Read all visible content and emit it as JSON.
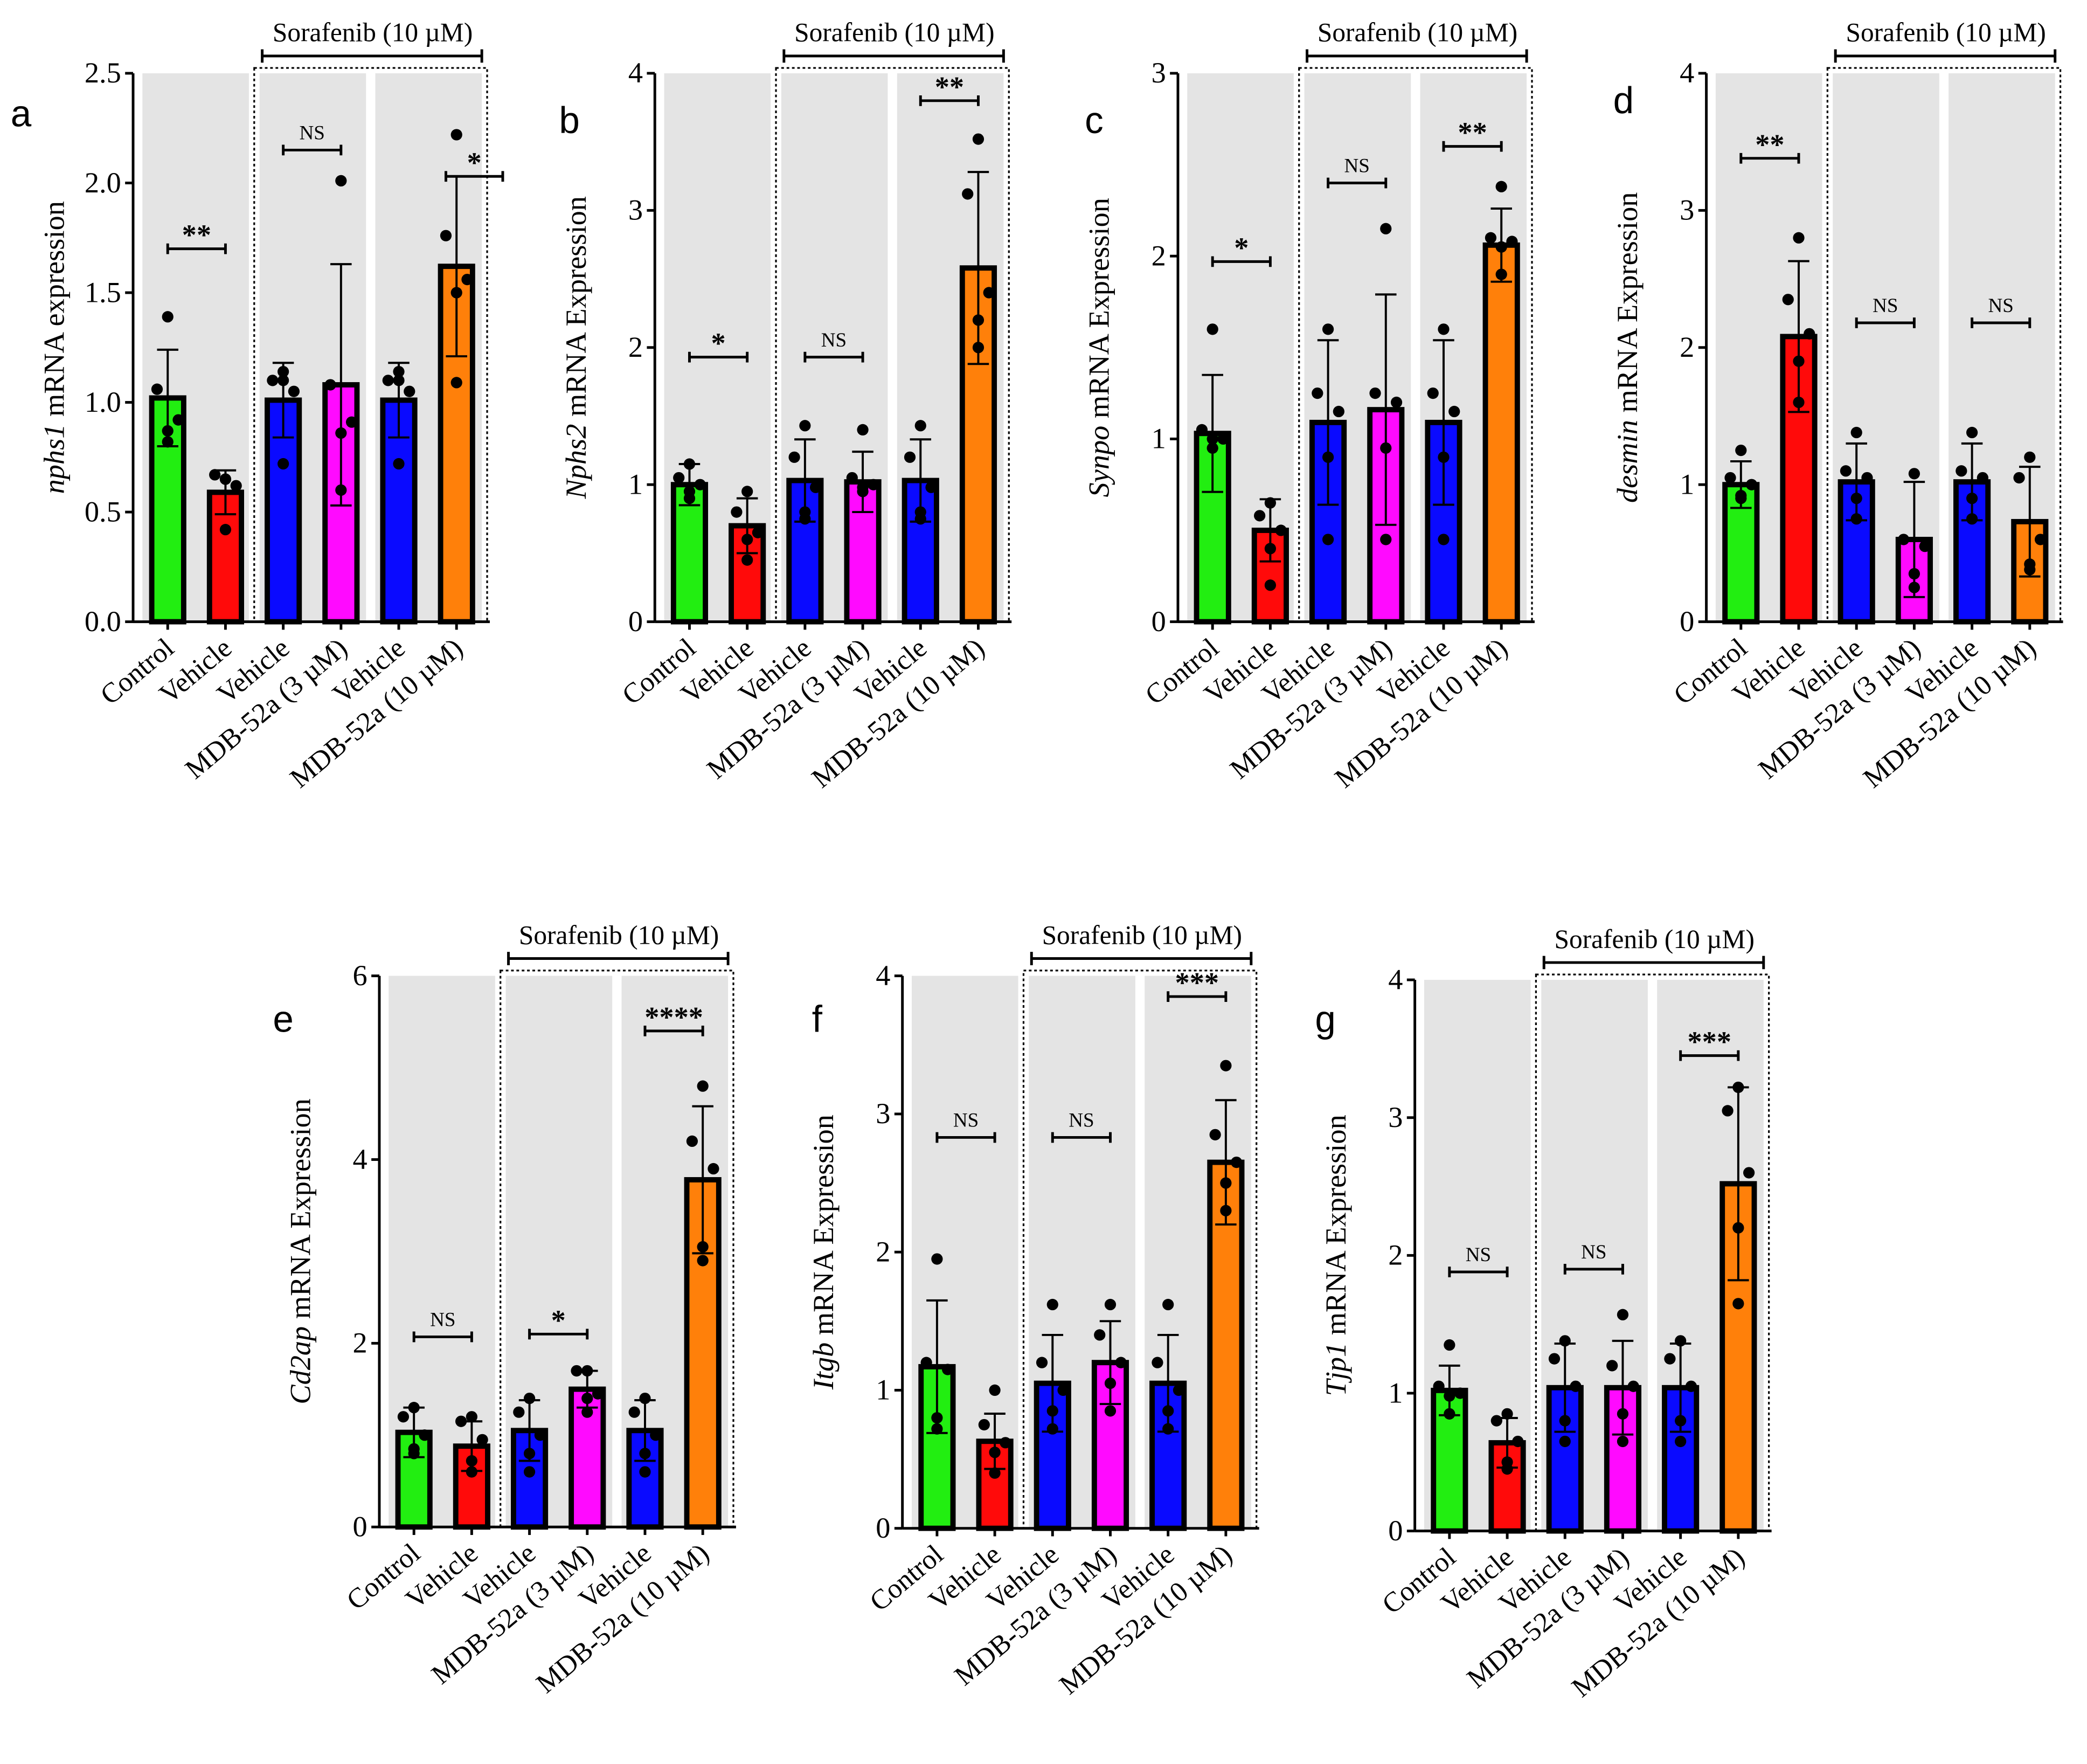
{
  "figure": {
    "bracket_label": "Sorafenib (10 µM)",
    "categories": [
      "Control",
      "Vehicle",
      "Vehicle",
      "MDB-52a (3 µM)",
      "Vehicle",
      "MDB-52a (10 µM)"
    ],
    "bar_colors": [
      "#22ee11",
      "#ff0a0a",
      "#0a0aff",
      "#ff0aff",
      "#0a0aff",
      "#ff800a"
    ],
    "band_color": "#e4e4e4"
  },
  "chart_data": [
    {
      "type": "bar",
      "panel": "a",
      "ylabel_gene": "nphs1",
      "ylabel_rest": " mRNA expression",
      "ylim": [
        0,
        2.5
      ],
      "ticks": [
        "0.0",
        "0.5",
        "1.0",
        "1.5",
        "2.0",
        "2.5"
      ],
      "tick_values": [
        0,
        0.5,
        1,
        1.5,
        2,
        2.5
      ],
      "means": [
        1.02,
        0.59,
        1.01,
        1.08,
        1.01,
        1.62
      ],
      "errors": [
        0.22,
        0.1,
        0.17,
        0.55,
        0.17,
        0.41
      ],
      "points": [
        [
          1.39,
          1.06,
          0.92,
          0.87,
          0.82
        ],
        [
          0.65,
          0.67,
          0.62,
          0.65,
          0.42
        ],
        [
          1.14,
          1.1,
          1.05,
          1.1,
          0.72
        ],
        [
          2.01,
          1.08,
          0.91,
          0.86,
          0.6
        ],
        [
          1.14,
          1.1,
          1.05,
          1.1,
          0.72
        ],
        [
          2.22,
          1.76,
          1.56,
          1.5,
          1.09
        ]
      ],
      "comparisons": [
        {
          "from": 0,
          "to": 1,
          "y": 1.7,
          "label": "**"
        },
        {
          "from": 2,
          "to": 3,
          "y": 2.15,
          "label": "NS"
        },
        {
          "from": 5,
          "to": 5.8,
          "y": 2.03,
          "label": "*"
        }
      ]
    },
    {
      "type": "bar",
      "panel": "b",
      "ylabel_gene": "Nphs2",
      "ylabel_rest": " mRNA Expression",
      "ylim": [
        0,
        4
      ],
      "ticks": [
        "0",
        "1",
        "2",
        "3",
        "4"
      ],
      "tick_values": [
        0,
        1,
        2,
        3,
        4
      ],
      "means": [
        1.0,
        0.7,
        1.03,
        1.02,
        1.03,
        2.58
      ],
      "errors": [
        0.15,
        0.2,
        0.3,
        0.22,
        0.3,
        0.7
      ],
      "points": [
        [
          1.15,
          1.05,
          1.0,
          0.95,
          0.9
        ],
        [
          0.95,
          0.8,
          0.65,
          0.6,
          0.45
        ],
        [
          1.43,
          1.2,
          0.98,
          0.8,
          0.75
        ],
        [
          1.4,
          1.05,
          1.0,
          0.98,
          0.95
        ],
        [
          1.43,
          1.2,
          0.98,
          0.8,
          0.75
        ],
        [
          3.52,
          3.12,
          2.4,
          2.2,
          2.0
        ]
      ],
      "comparisons": [
        {
          "from": 0,
          "to": 1,
          "y": 1.93,
          "label": "*"
        },
        {
          "from": 2,
          "to": 3,
          "y": 1.93,
          "label": "NS"
        },
        {
          "from": 4,
          "to": 5,
          "y": 3.8,
          "label": "**"
        }
      ]
    },
    {
      "type": "bar",
      "panel": "c",
      "ylabel_gene": "Synpo",
      "ylabel_rest": "  mRNA Expression",
      "ylim": [
        0,
        3
      ],
      "ticks": [
        "0",
        "1",
        "2",
        "3"
      ],
      "tick_values": [
        0,
        1,
        2,
        3
      ],
      "means": [
        1.03,
        0.5,
        1.09,
        1.16,
        1.09,
        2.06
      ],
      "errors": [
        0.32,
        0.17,
        0.45,
        0.63,
        0.45,
        0.2
      ],
      "points": [
        [
          1.6,
          1.05,
          1.0,
          0.95,
          1.0
        ],
        [
          0.65,
          0.58,
          0.5,
          0.4,
          0.2
        ],
        [
          1.6,
          1.25,
          1.15,
          0.9,
          0.45
        ],
        [
          2.15,
          1.25,
          1.2,
          0.95,
          0.45
        ],
        [
          1.6,
          1.25,
          1.15,
          0.9,
          0.45
        ],
        [
          2.38,
          2.1,
          2.08,
          2.05,
          1.9
        ]
      ],
      "comparisons": [
        {
          "from": 0,
          "to": 1,
          "y": 1.97,
          "label": "*"
        },
        {
          "from": 2,
          "to": 3,
          "y": 2.4,
          "label": "NS"
        },
        {
          "from": 4,
          "to": 5,
          "y": 2.6,
          "label": "**"
        }
      ]
    },
    {
      "type": "bar",
      "panel": "d",
      "ylabel_gene": "desmin",
      "ylabel_rest": " mRNA Expression",
      "ylim": [
        0,
        4
      ],
      "ticks": [
        "0",
        "1",
        "2",
        "3",
        "4"
      ],
      "tick_values": [
        0,
        1,
        2,
        3,
        4
      ],
      "means": [
        1.0,
        2.08,
        1.02,
        0.6,
        1.02,
        0.73
      ],
      "errors": [
        0.17,
        0.55,
        0.28,
        0.42,
        0.28,
        0.4
      ],
      "points": [
        [
          1.25,
          1.05,
          1.0,
          0.92,
          0.9
        ],
        [
          2.8,
          2.35,
          2.1,
          1.9,
          1.6
        ],
        [
          1.38,
          1.1,
          1.05,
          0.9,
          0.75
        ],
        [
          1.08,
          0.6,
          0.55,
          0.35,
          0.25
        ],
        [
          1.38,
          1.1,
          1.05,
          0.9,
          0.75
        ],
        [
          1.2,
          1.05,
          0.6,
          0.42,
          0.38
        ]
      ],
      "comparisons": [
        {
          "from": 0,
          "to": 1,
          "y": 3.38,
          "label": "**"
        },
        {
          "from": 2,
          "to": 3,
          "y": 2.18,
          "label": "NS"
        },
        {
          "from": 4,
          "to": 5,
          "y": 2.18,
          "label": "NS"
        }
      ]
    },
    {
      "type": "bar",
      "panel": "e",
      "ylabel_gene": "Cd2ap",
      "ylabel_rest": " mRNA Expression",
      "ylim": [
        0,
        6
      ],
      "ticks": [
        "0",
        "2",
        "4",
        "6"
      ],
      "tick_values": [
        0,
        2,
        4,
        6
      ],
      "means": [
        1.03,
        0.88,
        1.05,
        1.5,
        1.05,
        3.78
      ],
      "errors": [
        0.27,
        0.27,
        0.33,
        0.2,
        0.33,
        0.8
      ],
      "points": [
        [
          1.3,
          1.2,
          1.0,
          0.85,
          0.8
        ],
        [
          1.2,
          1.15,
          0.95,
          0.72,
          0.6
        ],
        [
          1.4,
          1.25,
          1.0,
          0.8,
          0.6
        ],
        [
          1.7,
          1.7,
          1.45,
          1.4,
          1.25
        ],
        [
          1.4,
          1.25,
          1.0,
          0.8,
          0.6
        ],
        [
          4.8,
          4.2,
          3.9,
          3.05,
          2.9
        ]
      ],
      "comparisons": [
        {
          "from": 0,
          "to": 1,
          "y": 2.07,
          "label": "NS"
        },
        {
          "from": 2,
          "to": 3,
          "y": 2.1,
          "label": "*"
        },
        {
          "from": 4,
          "to": 5,
          "y": 5.4,
          "label": "****"
        }
      ]
    },
    {
      "type": "bar",
      "panel": "f",
      "ylabel_gene": "Itgb",
      "ylabel_rest": " mRNA Expression",
      "ylim": [
        0,
        4
      ],
      "ticks": [
        "0",
        "1",
        "2",
        "3",
        "4"
      ],
      "tick_values": [
        0,
        1,
        2,
        3,
        4
      ],
      "means": [
        1.17,
        0.63,
        1.05,
        1.2,
        1.05,
        2.65
      ],
      "errors": [
        0.48,
        0.2,
        0.35,
        0.3,
        0.35,
        0.45
      ],
      "points": [
        [
          1.95,
          1.2,
          1.15,
          0.8,
          0.72
        ],
        [
          1.0,
          0.75,
          0.62,
          0.55,
          0.4
        ],
        [
          1.62,
          1.2,
          1.0,
          0.85,
          0.72
        ],
        [
          1.62,
          1.4,
          1.2,
          1.05,
          0.85
        ],
        [
          1.62,
          1.2,
          1.0,
          0.85,
          0.72
        ],
        [
          3.35,
          2.85,
          2.65,
          2.5,
          2.3
        ]
      ],
      "comparisons": [
        {
          "from": 0,
          "to": 1,
          "y": 2.83,
          "label": "NS"
        },
        {
          "from": 2,
          "to": 3,
          "y": 2.83,
          "label": "NS"
        },
        {
          "from": 4,
          "to": 5,
          "y": 3.85,
          "label": "***"
        }
      ]
    },
    {
      "type": "bar",
      "panel": "g",
      "ylabel_gene": "Tjp1",
      "ylabel_rest": " mRNA Expression",
      "ylim": [
        0,
        4
      ],
      "ticks": [
        "0",
        "1",
        "2",
        "3",
        "4"
      ],
      "tick_values": [
        0,
        1,
        2,
        3,
        4
      ],
      "means": [
        1.02,
        0.64,
        1.04,
        1.04,
        1.04,
        2.52
      ],
      "errors": [
        0.18,
        0.18,
        0.32,
        0.34,
        0.32,
        0.7
      ],
      "points": [
        [
          1.35,
          1.05,
          1.0,
          0.98,
          0.85
        ],
        [
          0.85,
          0.8,
          0.65,
          0.5,
          0.45
        ],
        [
          1.38,
          1.25,
          1.05,
          0.8,
          0.65
        ],
        [
          1.57,
          1.2,
          1.05,
          0.85,
          0.65
        ],
        [
          1.38,
          1.25,
          1.05,
          0.8,
          0.65
        ],
        [
          3.22,
          3.05,
          2.6,
          2.2,
          1.65
        ]
      ],
      "comparisons": [
        {
          "from": 0,
          "to": 1,
          "y": 1.88,
          "label": "NS"
        },
        {
          "from": 2,
          "to": 3,
          "y": 1.9,
          "label": "NS"
        },
        {
          "from": 4,
          "to": 5,
          "y": 3.45,
          "label": "***"
        }
      ]
    }
  ]
}
